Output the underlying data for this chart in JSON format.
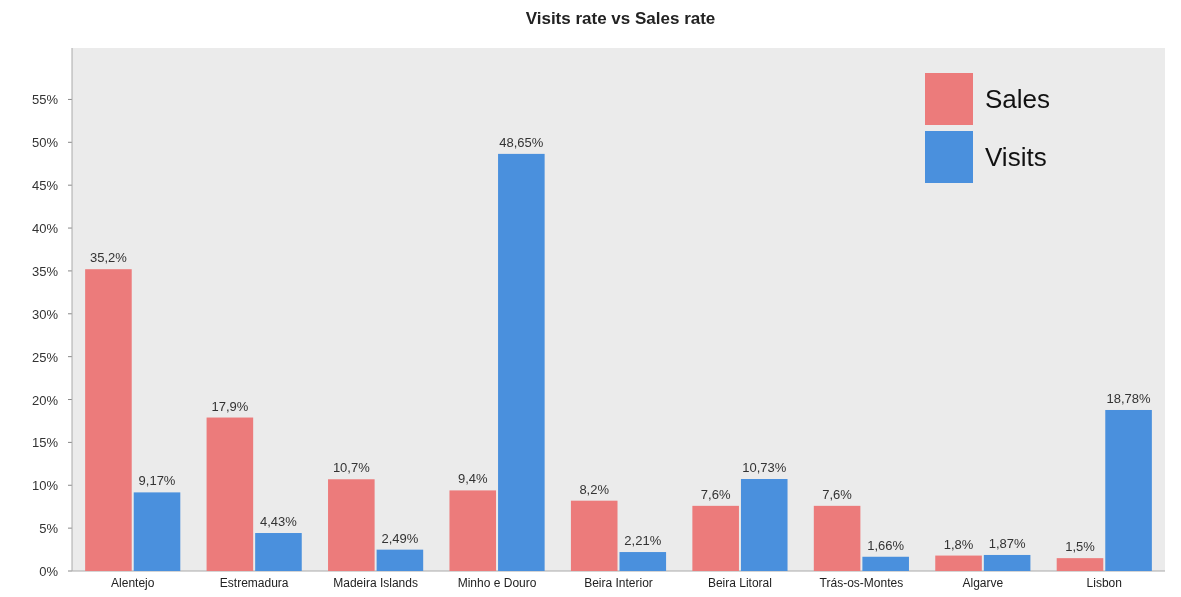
{
  "chart_data": {
    "type": "bar",
    "title": "Visits rate vs Sales rate",
    "categories": [
      "Alentejo",
      "Estremadura",
      "Madeira Islands",
      "Minho e Douro",
      "Beira Interior",
      "Beira Litoral",
      "Trás-os-Montes",
      "Algarve",
      "Lisbon"
    ],
    "series": [
      {
        "name": "Sales",
        "color": "#ec7b7b",
        "values": [
          35.2,
          17.9,
          10.7,
          9.4,
          8.2,
          7.6,
          7.6,
          1.8,
          1.5
        ],
        "value_labels": [
          "35,2%",
          "17,9%",
          "10,7%",
          "9,4%",
          "8,2%",
          "7,6%",
          "7,6%",
          "1,8%",
          "1,5%"
        ]
      },
      {
        "name": "Visits",
        "color": "#4a90dd",
        "values": [
          9.17,
          4.43,
          2.49,
          48.65,
          2.21,
          10.73,
          1.66,
          1.87,
          18.78
        ],
        "value_labels": [
          "9,17%",
          "4,43%",
          "2,49%",
          "48,65%",
          "2,21%",
          "10,73%",
          "1,66%",
          "1,87%",
          "18,78%"
        ]
      }
    ],
    "ylim": [
      0,
      61
    ],
    "yticks": [
      {
        "value": 0,
        "label": "0%"
      },
      {
        "value": 5,
        "label": "5%"
      },
      {
        "value": 10,
        "label": "10%"
      },
      {
        "value": 15,
        "label": "15%"
      },
      {
        "value": 20,
        "label": "20%"
      },
      {
        "value": 25,
        "label": "25%"
      },
      {
        "value": 30,
        "label": "30%"
      },
      {
        "value": 35,
        "label": "35%"
      },
      {
        "value": 40,
        "label": "40%"
      },
      {
        "value": 45,
        "label": "45%"
      },
      {
        "value": 50,
        "label": "50%"
      },
      {
        "value": 55,
        "label": "55%"
      }
    ],
    "legend": "top right"
  }
}
